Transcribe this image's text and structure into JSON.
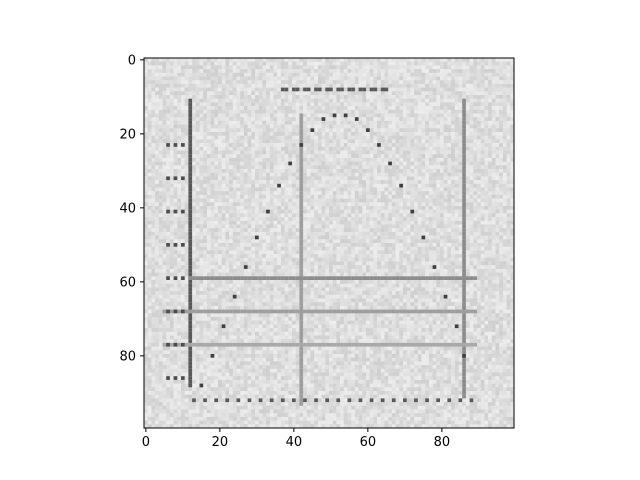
{
  "chart_data": {
    "type": "heatmap",
    "colormap": "gray",
    "grid": false,
    "title": "",
    "xlabel": "",
    "ylabel": "",
    "xlim": [
      -0.5,
      99.5
    ],
    "ylim": [
      99.5,
      -0.5
    ],
    "y_inverted": true,
    "x_ticks": [
      0,
      20,
      40,
      60,
      80
    ],
    "y_ticks": [
      0,
      20,
      40,
      60,
      80
    ],
    "x_tick_labels": [
      "0",
      "20",
      "40",
      "60",
      "80"
    ],
    "y_tick_labels": [
      "0",
      "20",
      "40",
      "60",
      "80"
    ],
    "image": {
      "width": 100,
      "height": 100,
      "background_gray": 0.87,
      "noise": "light speckle",
      "drawn_content": [
        {
          "kind": "vertical_line",
          "x": 12,
          "y_from": 11,
          "y_to": 88,
          "gray": 0.35
        },
        {
          "kind": "vertical_line",
          "x": 42,
          "y_from": 15,
          "y_to": 93,
          "gray": 0.62
        },
        {
          "kind": "vertical_line",
          "x": 86,
          "y_from": 11,
          "y_to": 91,
          "gray": 0.55
        },
        {
          "kind": "horizontal_line",
          "y": 59,
          "x_from": 12,
          "x_to": 89,
          "gray": 0.55
        },
        {
          "kind": "horizontal_line",
          "y": 68,
          "x_from": 5,
          "x_to": 89,
          "gray": 0.62
        },
        {
          "kind": "horizontal_line",
          "y": 77,
          "x_from": 5,
          "x_to": 89,
          "gray": 0.66
        },
        {
          "kind": "dotted_curve",
          "shape": "inverted parabola",
          "gray": 0.25,
          "points": [
            [
              15,
              88
            ],
            [
              18,
              80
            ],
            [
              21,
              72
            ],
            [
              24,
              64
            ],
            [
              27,
              56
            ],
            [
              30,
              48
            ],
            [
              33,
              41
            ],
            [
              36,
              34
            ],
            [
              39,
              28
            ],
            [
              42,
              23
            ],
            [
              45,
              19
            ],
            [
              48,
              16
            ],
            [
              51,
              15
            ],
            [
              54,
              15
            ],
            [
              57,
              16
            ],
            [
              60,
              19
            ],
            [
              63,
              23
            ],
            [
              66,
              28
            ],
            [
              69,
              34
            ],
            [
              72,
              41
            ],
            [
              75,
              48
            ],
            [
              78,
              56
            ],
            [
              81,
              64
            ],
            [
              84,
              72
            ],
            [
              86,
              80
            ]
          ]
        },
        {
          "kind": "dotted_baseline",
          "y": 92,
          "x_from": 13,
          "x_to": 88,
          "gray": 0.35
        },
        {
          "kind": "tick_marks_left",
          "x_from": 6,
          "x_to": 11,
          "ys": [
            23,
            32,
            41,
            50,
            59,
            68,
            77,
            86
          ],
          "gray": 0.3
        },
        {
          "kind": "text_blob",
          "x_from": 36,
          "x_to": 66,
          "y": 8,
          "gray": 0.35
        }
      ]
    }
  }
}
